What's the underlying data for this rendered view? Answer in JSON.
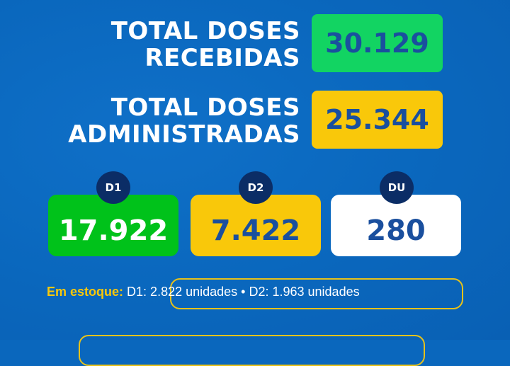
{
  "received": {
    "label_line1": "TOTAL DOSES",
    "label_line2": "RECEBIDAS",
    "value": "30.129",
    "color": "#12d462"
  },
  "administered": {
    "label_line1": "TOTAL DOSES",
    "label_line2": "ADMINISTRADAS",
    "value": "25.344",
    "color": "#f9c80a"
  },
  "doses": [
    {
      "badge": "D1",
      "value": "17.922",
      "color": "#00c21a"
    },
    {
      "badge": "D2",
      "value": "7.422",
      "color": "#f9c80a"
    },
    {
      "badge": "DU",
      "value": "280",
      "color": "#ffffff"
    }
  ],
  "stock": {
    "label": "Em estoque:",
    "text": "D1: 2.822 unidades • D2: 1.963 unidades"
  }
}
